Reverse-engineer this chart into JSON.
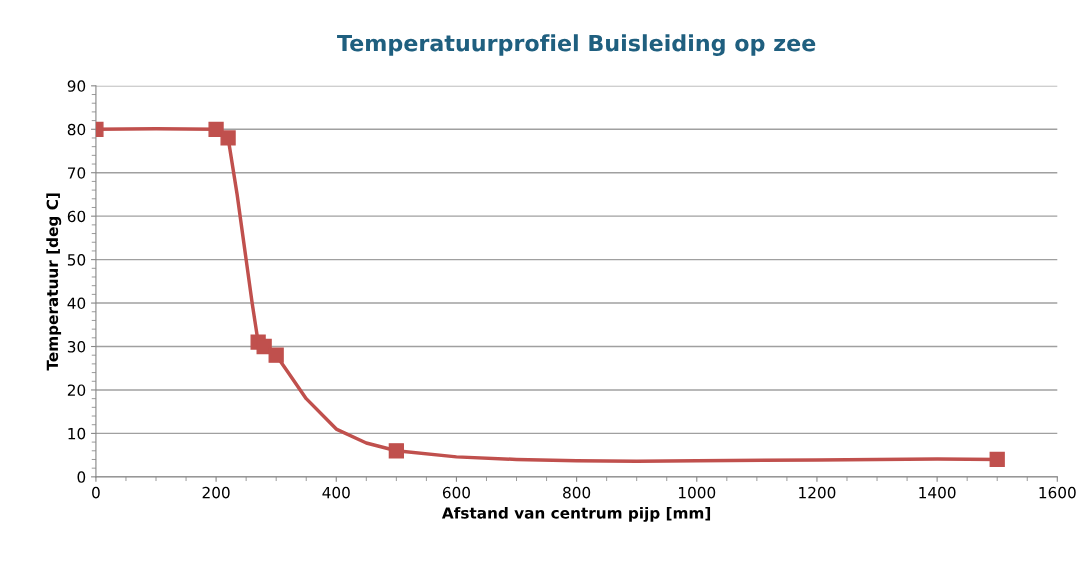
{
  "chart_data": {
    "type": "line",
    "title": "Temperatuurprofiel Buisleiding op zee",
    "xlabel": "Afstand van centrum pijp [mm]",
    "ylabel": "Temperatuur [deg C]",
    "x": [
      0,
      200,
      220,
      270,
      280,
      300,
      500,
      1500
    ],
    "series": [
      {
        "color": "#c0504d",
        "x": [
          0,
          100,
          200,
          220,
          235,
          250,
          260,
          270,
          280,
          300,
          320,
          350,
          400,
          450,
          500,
          600,
          700,
          800,
          900,
          1000,
          1200,
          1400,
          1500
        ],
        "values": [
          80,
          80.1,
          80,
          78,
          65,
          50,
          40,
          31,
          30,
          28,
          24,
          18,
          11,
          7.8,
          6,
          4.6,
          4,
          3.7,
          3.6,
          3.7,
          3.9,
          4.1,
          4
        ],
        "marker": "none"
      },
      {
        "type": "scatter",
        "color": "#c0504d",
        "values": [
          80,
          80,
          78,
          31,
          30,
          28,
          6,
          4
        ],
        "marker": "square"
      }
    ],
    "xlim": [
      0,
      1600
    ],
    "xticks": [
      0,
      200,
      400,
      600,
      800,
      1000,
      1200,
      1400,
      1600
    ],
    "ylim": [
      0,
      90
    ],
    "yticks": [
      0,
      10,
      20,
      30,
      40,
      50,
      60,
      70,
      80,
      90
    ],
    "grid": "y",
    "line_style": "solid",
    "legend": false
  }
}
